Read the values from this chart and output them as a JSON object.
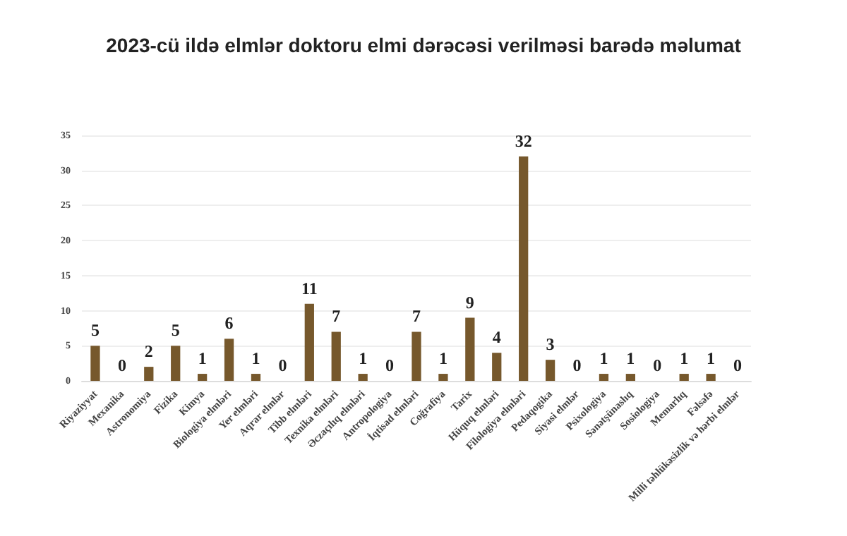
{
  "chart_data": {
    "type": "bar",
    "title": "2023-cü ildə elmlər doktoru elmi dərəcəsi verilməsi barədə məlumat",
    "categories": [
      "Riyaziyyat",
      "Mexanika",
      "Astronomiya",
      "Fizika",
      "Kimya",
      "Biologiya elmləri",
      "Yer elmləri",
      "Aqrar elmlər",
      "Tibb elmləri",
      "Texnika elmləri",
      "Əczaçılıq elmləri",
      "Antropologiya",
      "İqtisad elmləri",
      "Coğrafiya",
      "Tarix",
      "Hüquq elmləri",
      "Filologiya elmləri",
      "Pedaqogika",
      "Siyasi elmlər",
      "Psixologiya",
      "Sənətşünaslıq",
      "Sosiologiya",
      "Memarlıq",
      "Fəlsəfə",
      "Milli təhlükəsizlik və hərbi elmlər"
    ],
    "values": [
      5,
      0,
      2,
      5,
      1,
      6,
      1,
      0,
      11,
      7,
      1,
      0,
      7,
      1,
      9,
      4,
      32,
      3,
      0,
      1,
      1,
      0,
      1,
      1,
      0
    ],
    "color": "#76582c",
    "ylim": [
      0,
      35
    ],
    "yticks": [
      0,
      5,
      10,
      15,
      20,
      25,
      30,
      35
    ],
    "grid": "y",
    "data_labels": true
  }
}
